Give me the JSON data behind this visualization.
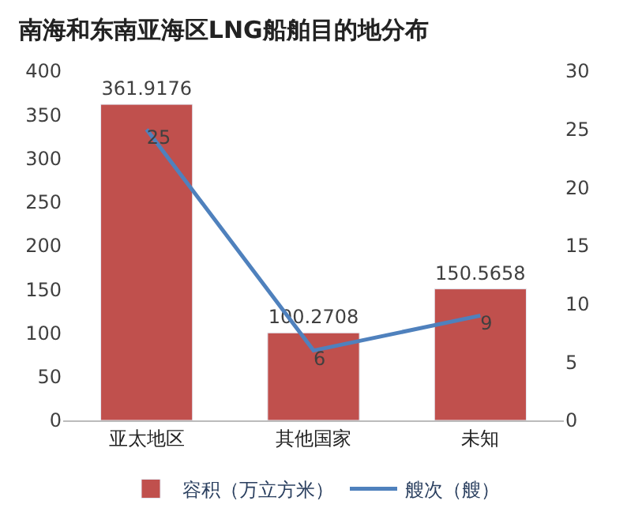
{
  "chart_data": {
    "type": "bar",
    "title": "南海和东南亚海区LNG船舶目的地分布",
    "categories": [
      "亚太地区",
      "其他国家",
      "未知"
    ],
    "series": [
      {
        "name": "容积（万立方米）",
        "color": "#c0504d",
        "values": [
          361.9176,
          100.2708,
          150.5658
        ]
      },
      {
        "name": "艘次（艘）",
        "color": "#4f81bd",
        "values": [
          25,
          6,
          9
        ],
        "type": "line",
        "axis": "y2"
      }
    ],
    "ylim": [
      0,
      400
    ],
    "yticks": [
      0,
      50,
      100,
      150,
      200,
      250,
      300,
      350,
      400
    ],
    "y2lim": [
      0,
      30
    ],
    "y2ticks": [
      0,
      5,
      10,
      15,
      20,
      25,
      30
    ],
    "data_labels": true,
    "legend": "bottom",
    "marker": "none",
    "line_style": "solid"
  }
}
